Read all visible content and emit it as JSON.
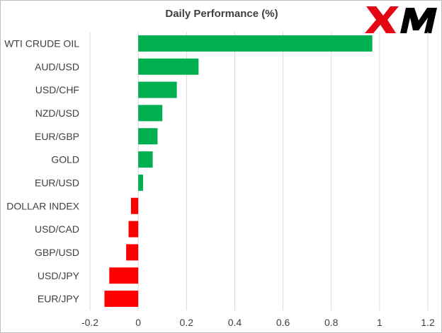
{
  "chart_data": {
    "type": "bar",
    "orientation": "horizontal",
    "title": "Daily Performance (%)",
    "xlabel": "",
    "ylabel": "",
    "categories": [
      "WTI CRUDE OIL",
      "AUD/USD",
      "USD/CHF",
      "NZD/USD",
      "EUR/GBP",
      "GOLD",
      "EUR/USD",
      "DOLLAR INDEX",
      "USD/CAD",
      "GBP/USD",
      "USD/JPY",
      "EUR/JPY"
    ],
    "values": [
      0.97,
      0.25,
      0.16,
      0.1,
      0.08,
      0.06,
      0.02,
      -0.03,
      -0.04,
      -0.05,
      -0.12,
      -0.14
    ],
    "xlim": [
      -0.2,
      1.2
    ],
    "xticks": [
      "-0.2",
      "0",
      "0.2",
      "0.4",
      "0.6",
      "0.8",
      "1",
      "1.2"
    ],
    "grid": "vertical",
    "legend": "none",
    "colors": {
      "positive": "#00b050",
      "negative": "#ff0000",
      "gridline": "#d9d9d9",
      "text": "#404040",
      "logo_x": "#e30613",
      "logo_m": "#000000"
    }
  },
  "logo": {
    "text": "XM",
    "icon": "xm-logo"
  }
}
